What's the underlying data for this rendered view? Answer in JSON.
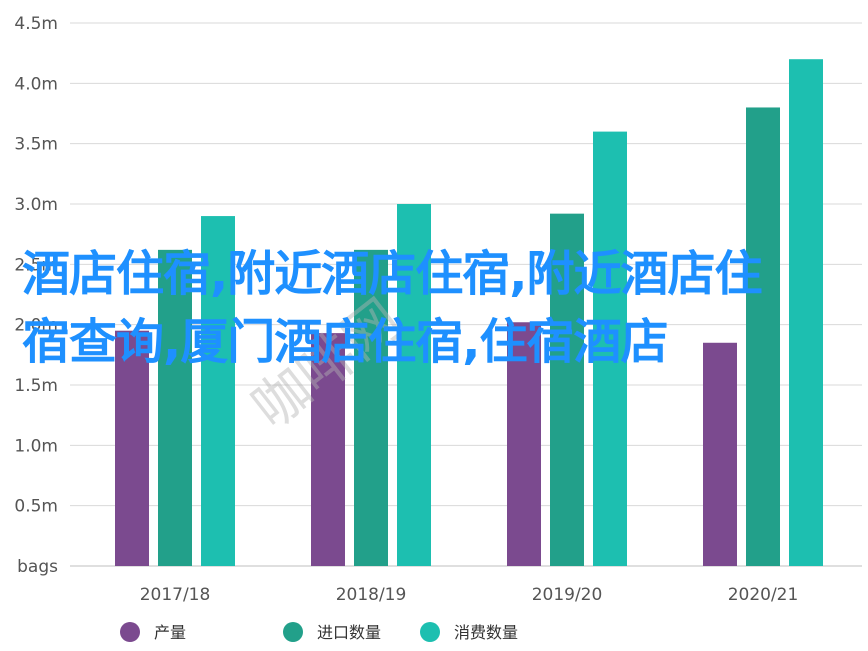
{
  "chart_data": {
    "type": "bar",
    "categories": [
      "2017/18",
      "2018/19",
      "2019/20",
      "2020/21"
    ],
    "series": [
      {
        "name": "产量",
        "color": "#7b4a8f",
        "values": [
          1.95,
          1.93,
          2.02,
          1.85
        ]
      },
      {
        "name": "进口数量",
        "color": "#22a08a",
        "values": [
          2.62,
          2.62,
          2.92,
          3.8
        ]
      },
      {
        "name": "消费数量",
        "color": "#1dbfb0",
        "values": [
          2.9,
          3.0,
          3.6,
          4.2
        ]
      }
    ],
    "y_ticks": [
      "bags",
      "0.5m",
      "1.0m",
      "1.5m",
      "2.0m",
      "2.5m",
      "3.0m",
      "3.5m",
      "4.0m",
      "4.5m"
    ],
    "ylim": [
      0,
      4.5
    ],
    "grid": true,
    "legend_position": "bottom"
  },
  "overlay": {
    "title": "酒店住宿,附近酒店住宿,附近酒店住宿查询,厦门酒店住宿,住宿酒店",
    "watermark": "咖啡网"
  }
}
